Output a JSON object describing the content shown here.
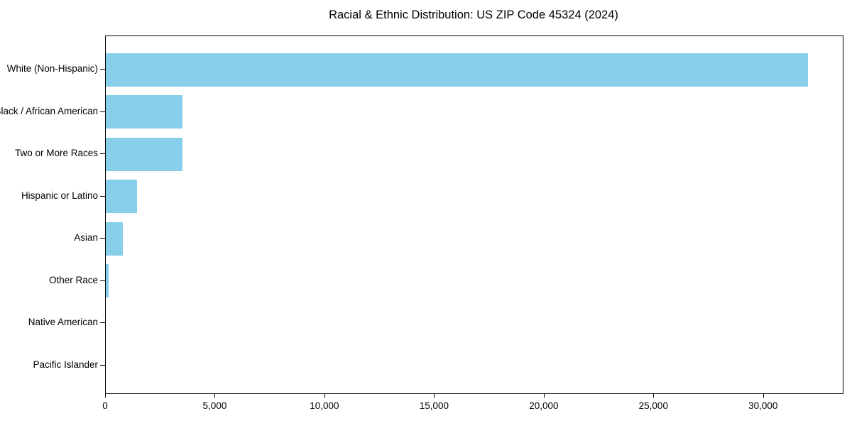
{
  "chart_data": {
    "type": "bar",
    "orientation": "horizontal",
    "title": "Racial & Ethnic Distribution: US ZIP Code 45324 (2024)",
    "categories": [
      "White (Non-Hispanic)",
      "Black / African American",
      "Two or More Races",
      "Hispanic or Latino",
      "Asian",
      "Other Race",
      "Native American",
      "Pacific Islander"
    ],
    "values": [
      32000,
      3500,
      3480,
      1430,
      770,
      140,
      0,
      0
    ],
    "xlabel": "",
    "ylabel": "",
    "xlim": [
      0,
      33600
    ],
    "xticks": [
      0,
      5000,
      10000,
      15000,
      20000,
      25000,
      30000
    ],
    "xtick_labels": [
      "0",
      "5,000",
      "10,000",
      "15,000",
      "20,000",
      "25,000",
      "30,000"
    ],
    "bar_color": "#87ceeb",
    "axis_color": "#000000",
    "background_color": "#ffffff",
    "grid": false,
    "legend": null,
    "category_order": "largest value at top, categories inverted on y-axis"
  }
}
